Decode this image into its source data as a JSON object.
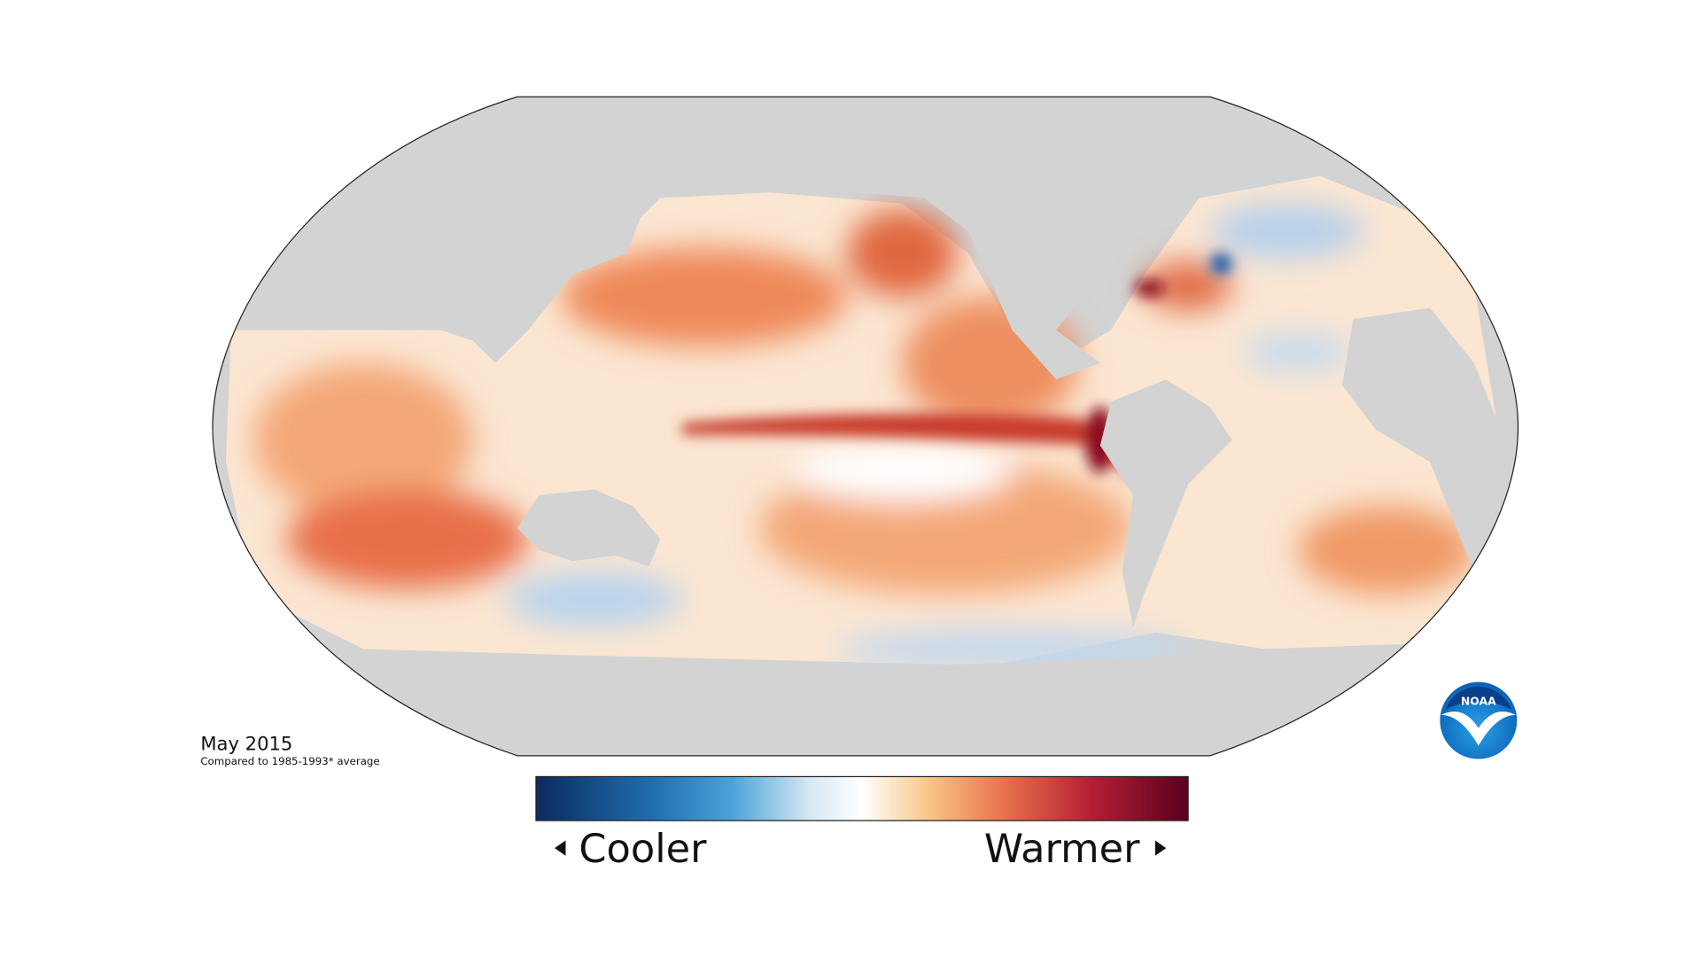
{
  "map": {
    "date": "May 2015",
    "baseline": "Compared to 1985-1993* average"
  },
  "legend": {
    "low": "Cooler",
    "high": "Warmer"
  },
  "logo": "NOAA"
}
